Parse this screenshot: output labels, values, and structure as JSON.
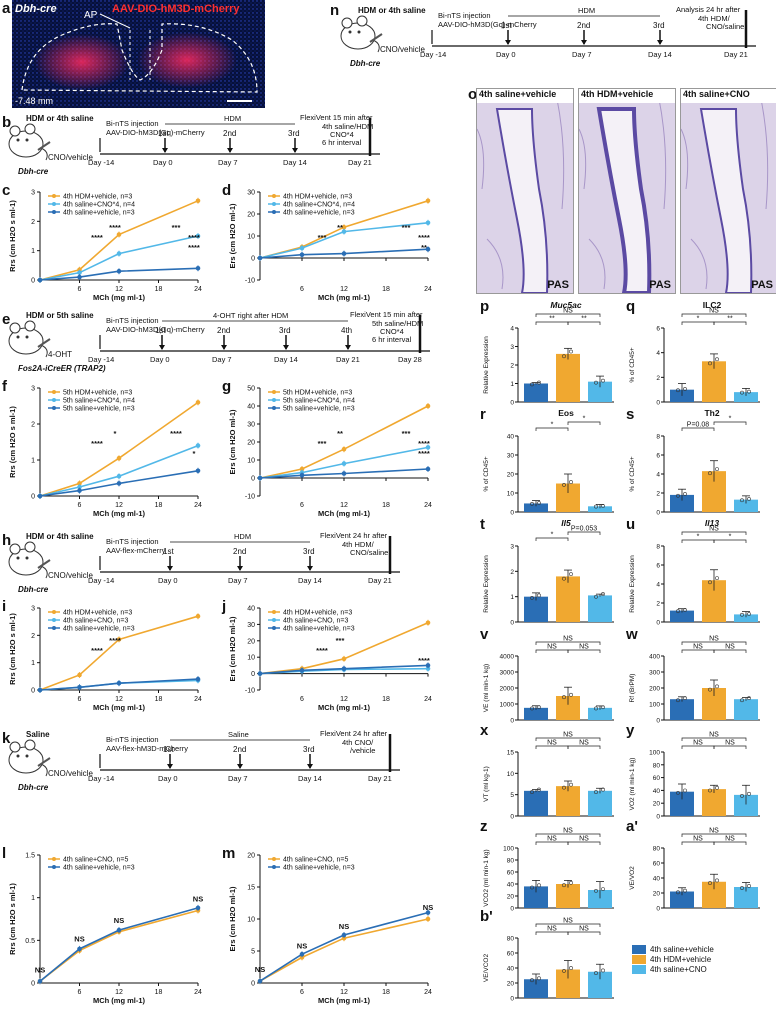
{
  "colors": {
    "orange": "#f0a830",
    "lightblue": "#52b8e8",
    "darkblue": "#2a6eb5",
    "red": "#ff2a2a",
    "text": "#111111"
  },
  "panel_labels": {
    "a": "a",
    "b": "b",
    "c": "c",
    "d": "d",
    "e": "e",
    "f": "f",
    "g": "g",
    "h": "h",
    "i": "i",
    "j": "j",
    "k": "k",
    "l": "l",
    "m": "m",
    "n": "n",
    "o": "o",
    "p": "p",
    "q": "q",
    "r": "r",
    "s": "s",
    "t": "t",
    "u": "u",
    "v": "v",
    "w": "w",
    "x": "x",
    "y": "y",
    "z": "z",
    "a2": "a'",
    "b2": "b'"
  },
  "panel_a": {
    "title_left": "Dbh-cre",
    "title_right": "AAV-DIO-hM3D-mCherry",
    "ap": "AP",
    "coord": "-7.48 mm"
  },
  "timelines": {
    "b": {
      "mouse_top": "HDM or 4th saline",
      "mouse_bottom": "CNO/vehicle",
      "strain": "Dbh-cre",
      "inj": "Bi-nTS injection",
      "virus": "AAV-DIO-hM3D(Gq)-mCherry",
      "span": "HDM",
      "final1": "FlexiVent 15 min after",
      "final2": "4th saline/HDM",
      "final3": "CNO*4",
      "final4": "6 hr interval",
      "ticks": [
        "Day -14",
        "Day 0",
        "Day 7",
        "Day 14",
        "Day 21"
      ],
      "doses": [
        "1st",
        "2nd",
        "3rd"
      ]
    },
    "e": {
      "mouse_top": "HDM or 5th saline",
      "mouse_bottom": "4-OHT",
      "strain": "Fos2A-iCreER (TRAP2)",
      "inj": "Bi-nTS injection",
      "virus": "AAV-DIO-hM3D(Gq)-mCherry",
      "span": "4-OHT right after HDM",
      "final1": "FlexiVent 15 min after",
      "final2": "5th saline/HDM",
      "final3": "CNO*4",
      "final4": "6 hr interval",
      "ticks": [
        "Day -14",
        "Day 0",
        "Day 7",
        "Day 14",
        "Day 21",
        "Day 28"
      ],
      "doses": [
        "1st",
        "2nd",
        "3rd",
        "4th"
      ]
    },
    "h": {
      "mouse_top": "HDM or 4th saline",
      "mouse_bottom": "CNO/vehicle",
      "strain": "Dbh-cre",
      "inj": "Bi-nTS injection",
      "virus": "AAV-flex-mCherry",
      "span": "HDM",
      "final1": "FlexiVent 24 hr after",
      "final2": "4th HDM/",
      "final3": "CNO/saline",
      "final4": "",
      "ticks": [
        "Day -14",
        "Day 0",
        "Day 7",
        "Day 14",
        "Day 21"
      ],
      "doses": [
        "1st",
        "2nd",
        "3rd"
      ]
    },
    "k": {
      "mouse_top": "Saline",
      "mouse_bottom": "CNO/vehicle",
      "strain": "Dbh-cre",
      "inj": "Bi-nTS injection",
      "virus": "AAV-flex-hM3D-mCherry",
      "span": "Saline",
      "final1": "FlexiVent 24 hr after",
      "final2": "4th CNO/",
      "final3": "/vehicle",
      "final4": "",
      "ticks": [
        "Day -14",
        "Day 0",
        "Day 7",
        "Day 14",
        "Day 21"
      ],
      "doses": [
        "1st",
        "2nd",
        "3rd"
      ]
    },
    "n": {
      "mouse_top": "HDM or 4th saline",
      "mouse_bottom": "CNO/vehicle",
      "strain": "Dbh-cre",
      "inj": "Bi-nTS injection",
      "virus": "AAV-DIO-hM3D(Gq)-mCherry",
      "span": "HDM",
      "final1": "Analysis 24 hr after",
      "final2": "4th HDM/",
      "final3": "CNO/saline",
      "final4": "",
      "ticks": [
        "Day -14",
        "Day 0",
        "Day 7",
        "Day 14",
        "Day 21"
      ],
      "doses": [
        "1st",
        "2nd",
        "3rd"
      ]
    }
  },
  "histology": {
    "titles": [
      "4th saline+vehicle",
      "4th HDM+vehicle",
      "4th saline+CNO"
    ],
    "stain": "PAS"
  },
  "chart_data": [
    {
      "id": "c",
      "type": "line",
      "ylabel": "Rrs (cm H2O s ml-1)",
      "xlabel": "MCh (mg ml-1)",
      "x": [
        0,
        6,
        12,
        24
      ],
      "ylim": [
        0,
        3
      ],
      "yticks": [
        0,
        1,
        2,
        3
      ],
      "xticks": [
        6,
        12,
        18,
        24
      ],
      "series": [
        {
          "name": "4th HDM+vehicle, n=3",
          "color": "#f0a830",
          "values": [
            0,
            0.35,
            1.55,
            2.7
          ]
        },
        {
          "name": "4th saline+CNO*4, n=4",
          "color": "#52b8e8",
          "values": [
            0,
            0.25,
            0.9,
            1.5
          ]
        },
        {
          "name": "4th saline+vehicle, n=3",
          "color": "#2a6eb5",
          "values": [
            0,
            0.1,
            0.3,
            0.4
          ]
        }
      ],
      "annotations": [
        "****",
        "****",
        "****",
        "***",
        "****"
      ]
    },
    {
      "id": "d",
      "type": "line",
      "ylabel": "Ers (cm H2O ml-1)",
      "xlabel": "MCh (mg ml-1)",
      "x": [
        0,
        6,
        12,
        24
      ],
      "ylim": [
        -10,
        30
      ],
      "yticks": [
        -10,
        0,
        10,
        20,
        30
      ],
      "xticks": [
        6,
        12,
        18,
        24
      ],
      "series": [
        {
          "name": "4th HDM+vehicle, n=3",
          "color": "#f0a830",
          "values": [
            0,
            5,
            14,
            26
          ]
        },
        {
          "name": "4th saline+CNO*4, n=4",
          "color": "#52b8e8",
          "values": [
            0,
            4.5,
            12,
            16
          ]
        },
        {
          "name": "4th saline+vehicle, n=3",
          "color": "#2a6eb5",
          "values": [
            0,
            1.5,
            2,
            4
          ]
        }
      ],
      "annotations": [
        "**",
        "***",
        "**",
        "***",
        "****"
      ]
    },
    {
      "id": "f",
      "type": "line",
      "ylabel": "Rrs (cm H2O s ml-1)",
      "xlabel": "MCh (mg ml-1)",
      "x": [
        0,
        6,
        12,
        24
      ],
      "ylim": [
        0,
        3
      ],
      "yticks": [
        0,
        1,
        2,
        3
      ],
      "xticks": [
        6,
        12,
        18,
        24
      ],
      "series": [
        {
          "name": "5th HDM+vehicle, n=3",
          "color": "#f0a830",
          "values": [
            0,
            0.35,
            1.05,
            2.6
          ]
        },
        {
          "name": "5th saline+CNO*4, n=4",
          "color": "#52b8e8",
          "values": [
            0,
            0.25,
            0.55,
            1.4
          ]
        },
        {
          "name": "5th saline+vehicle, n=3",
          "color": "#2a6eb5",
          "values": [
            0,
            0.15,
            0.35,
            0.7
          ]
        }
      ],
      "annotations": [
        "*",
        "****",
        "*",
        "****"
      ]
    },
    {
      "id": "g",
      "type": "line",
      "ylabel": "Ers (cm H2O ml-1)",
      "xlabel": "MCh (mg ml-1)",
      "x": [
        0,
        6,
        12,
        24
      ],
      "ylim": [
        -10,
        50
      ],
      "yticks": [
        -10,
        0,
        10,
        20,
        30,
        40,
        50
      ],
      "xticks": [
        6,
        12,
        18,
        24
      ],
      "series": [
        {
          "name": "5th HDM+vehicle, n=3",
          "color": "#f0a830",
          "values": [
            0,
            5,
            16,
            40
          ]
        },
        {
          "name": "5th saline+CNO*4, n=4",
          "color": "#52b8e8",
          "values": [
            0,
            3,
            8,
            17
          ]
        },
        {
          "name": "5th saline+vehicle, n=3",
          "color": "#2a6eb5",
          "values": [
            0,
            1.5,
            2.5,
            5
          ]
        }
      ],
      "annotations": [
        "**",
        "***",
        "****",
        "***",
        "****"
      ]
    },
    {
      "id": "i",
      "type": "line",
      "ylabel": "Rrs (cm H2O s ml-1)",
      "xlabel": "MCh (mg ml-1)",
      "x": [
        0,
        6,
        12,
        24
      ],
      "ylim": [
        0,
        3
      ],
      "yticks": [
        0,
        1,
        2,
        3
      ],
      "xticks": [
        6,
        12,
        18,
        24
      ],
      "series": [
        {
          "name": "4th HDM+vehicle, n=3",
          "color": "#f0a830",
          "values": [
            0,
            0.55,
            1.85,
            2.7
          ]
        },
        {
          "name": "4th saline+CNO, n=3",
          "color": "#52b8e8",
          "values": [
            0,
            0.1,
            0.25,
            0.35
          ]
        },
        {
          "name": "4th saline+vehicle, n=3",
          "color": "#2a6eb5",
          "values": [
            0,
            0.1,
            0.25,
            0.4
          ]
        }
      ],
      "annotations": [
        "****",
        "****"
      ]
    },
    {
      "id": "j",
      "type": "line",
      "ylabel": "Ers (cm H2O ml-1)",
      "xlabel": "MCh (mg ml-1)",
      "x": [
        0,
        6,
        12,
        24
      ],
      "ylim": [
        -10,
        40
      ],
      "yticks": [
        -10,
        0,
        10,
        20,
        30,
        40
      ],
      "xticks": [
        6,
        12,
        18,
        24
      ],
      "series": [
        {
          "name": "4th HDM+vehicle, n=3",
          "color": "#f0a830",
          "values": [
            0,
            3,
            9,
            31
          ]
        },
        {
          "name": "4th saline+CNO, n=3",
          "color": "#52b8e8",
          "values": [
            0,
            1.5,
            2.5,
            3
          ]
        },
        {
          "name": "4th saline+vehicle, n=3",
          "color": "#2a6eb5",
          "values": [
            0,
            2,
            3,
            5
          ]
        }
      ],
      "annotations": [
        "***",
        "****",
        "****"
      ]
    },
    {
      "id": "l",
      "type": "line",
      "ylabel": "Rrs (cm H2O s ml-1)",
      "xlabel": "MCh (mg ml-1)",
      "x": [
        0,
        6,
        12,
        24
      ],
      "ylim": [
        0,
        1.5
      ],
      "yticks": [
        0,
        0.5,
        1.0,
        1.5
      ],
      "xticks": [
        6,
        12,
        18,
        24
      ],
      "series": [
        {
          "name": "4th saline+CNO, n=5",
          "color": "#f0a830",
          "values": [
            0.02,
            0.38,
            0.6,
            0.85
          ]
        },
        {
          "name": "4th saline+vehicle, n=3",
          "color": "#2a6eb5",
          "values": [
            0.02,
            0.4,
            0.62,
            0.88
          ]
        }
      ],
      "annotations": [
        "NS",
        "NS",
        "NS",
        "NS"
      ]
    },
    {
      "id": "m",
      "type": "line",
      "ylabel": "Ers (cm H2O ml-1)",
      "xlabel": "MCh (mg ml-1)",
      "x": [
        0,
        6,
        12,
        24
      ],
      "ylim": [
        0,
        20
      ],
      "yticks": [
        0,
        5,
        10,
        15,
        20
      ],
      "xticks": [
        6,
        12,
        18,
        24
      ],
      "series": [
        {
          "name": "4th saline+CNO, n=5",
          "color": "#f0a830",
          "values": [
            0.3,
            4,
            7,
            10
          ]
        },
        {
          "name": "4th saline+vehicle, n=3",
          "color": "#2a6eb5",
          "values": [
            0.3,
            4.5,
            7.5,
            11
          ]
        }
      ],
      "annotations": [
        "NS",
        "NS",
        "NS",
        "NS"
      ]
    },
    {
      "id": "p",
      "type": "bar",
      "title": "Muc5ac",
      "ylabel": "Relative Expression",
      "ylim": [
        0,
        4
      ],
      "yticks": [
        0,
        1,
        2,
        3,
        4
      ],
      "values": [
        1.0,
        2.6,
        1.1
      ],
      "errors": [
        0.05,
        0.3,
        0.3
      ],
      "sig": [
        "NS",
        "**",
        "**"
      ]
    },
    {
      "id": "q",
      "type": "bar",
      "title": "ILC2",
      "ylabel": "% of CD45+",
      "ylim": [
        0,
        6
      ],
      "yticks": [
        0,
        2,
        4,
        6
      ],
      "values": [
        1.0,
        3.3,
        0.8
      ],
      "errors": [
        0.5,
        0.6,
        0.3
      ],
      "sig": [
        "NS",
        "*",
        "**"
      ]
    },
    {
      "id": "r",
      "type": "bar",
      "title": "Eos",
      "ylabel": "% of CD45+",
      "ylim": [
        0,
        40
      ],
      "yticks": [
        0,
        10,
        20,
        30,
        40
      ],
      "values": [
        4.5,
        15,
        3
      ],
      "errors": [
        1.5,
        5,
        1
      ],
      "sig": [
        "*",
        "*"
      ]
    },
    {
      "id": "s",
      "type": "bar",
      "title": "Th2",
      "ylabel": "% of CD45+",
      "ylim": [
        0,
        8
      ],
      "yticks": [
        0,
        2,
        4,
        6,
        8
      ],
      "values": [
        1.8,
        4.3,
        1.3
      ],
      "errors": [
        0.6,
        1.1,
        0.4
      ],
      "sig": [
        "P=0.08",
        "*"
      ]
    },
    {
      "id": "t",
      "type": "bar",
      "title": "Il5",
      "ylabel": "Relative Expression",
      "ylim": [
        0,
        3
      ],
      "yticks": [
        0,
        1,
        2,
        3
      ],
      "values": [
        1.0,
        1.8,
        1.05
      ],
      "errors": [
        0.15,
        0.25,
        0.05
      ],
      "sig": [
        "*",
        "P=0.053"
      ]
    },
    {
      "id": "u",
      "type": "bar",
      "title": "Il13",
      "ylabel": "Relative Expression",
      "ylim": [
        0,
        8
      ],
      "yticks": [
        0,
        2,
        4,
        6,
        8
      ],
      "values": [
        1.2,
        4.4,
        0.8
      ],
      "errors": [
        0.2,
        1.1,
        0.3
      ],
      "sig": [
        "NS",
        "*",
        "*"
      ]
    },
    {
      "id": "v",
      "type": "bar",
      "title": "",
      "ylabel": "VE (ml min-1 kg)",
      "ylim": [
        0,
        4000
      ],
      "yticks": [
        0,
        1000,
        2000,
        3000,
        4000
      ],
      "values": [
        760,
        1500,
        760
      ],
      "errors": [
        130,
        550,
        120
      ],
      "sig": [
        "NS",
        "NS",
        "NS"
      ]
    },
    {
      "id": "w",
      "type": "bar",
      "title": "",
      "ylabel": "Rf (BrPM)",
      "ylim": [
        0,
        400
      ],
      "yticks": [
        0,
        100,
        200,
        300,
        400
      ],
      "values": [
        130,
        200,
        130
      ],
      "errors": [
        15,
        50,
        10
      ],
      "sig": [
        "NS",
        "NS",
        "NS"
      ]
    },
    {
      "id": "x",
      "type": "bar",
      "title": "",
      "ylabel": "VT (ml kg-1)",
      "ylim": [
        0,
        15
      ],
      "yticks": [
        0,
        5,
        10,
        15
      ],
      "values": [
        5.9,
        7.0,
        5.9
      ],
      "errors": [
        0.3,
        1.2,
        0.6
      ],
      "sig": [
        "NS",
        "NS",
        "NS"
      ]
    },
    {
      "id": "y",
      "type": "bar",
      "title": "",
      "ylabel": "VO2 (ml min-1 kg)",
      "ylim": [
        0,
        100
      ],
      "yticks": [
        0,
        20,
        40,
        60,
        80,
        100
      ],
      "values": [
        38,
        42,
        33
      ],
      "errors": [
        12,
        6,
        15
      ],
      "sig": [
        "NS",
        "NS",
        "NS"
      ]
    },
    {
      "id": "z",
      "type": "bar",
      "title": "",
      "ylabel": "VCO2 (ml min-1 kg)",
      "ylim": [
        0,
        100
      ],
      "yticks": [
        0,
        20,
        40,
        60,
        80,
        100
      ],
      "values": [
        36,
        40,
        30
      ],
      "errors": [
        10,
        6,
        14
      ],
      "sig": [
        "NS",
        "NS",
        "NS"
      ]
    },
    {
      "id": "a2",
      "type": "bar",
      "title": "",
      "ylabel": "VE/VO2",
      "ylim": [
        0,
        80
      ],
      "yticks": [
        0,
        20,
        40,
        60,
        80
      ],
      "values": [
        22,
        35,
        28
      ],
      "errors": [
        5,
        10,
        6
      ],
      "sig": [
        "NS",
        "NS",
        "NS"
      ]
    },
    {
      "id": "b2",
      "type": "bar",
      "title": "",
      "ylabel": "VE/VCO2",
      "ylim": [
        0,
        80
      ],
      "yticks": [
        0,
        20,
        40,
        60,
        80
      ],
      "values": [
        25,
        38,
        35
      ],
      "errors": [
        7,
        12,
        10
      ],
      "sig": [
        "NS",
        "NS",
        "NS"
      ]
    }
  ],
  "bar_legend": {
    "items": [
      {
        "label": "4th saline+vehicle",
        "color": "#2a6eb5"
      },
      {
        "label": "4th HDM+vehicle",
        "color": "#f0a830"
      },
      {
        "label": "4th saline+CNO",
        "color": "#52b8e8"
      }
    ]
  }
}
